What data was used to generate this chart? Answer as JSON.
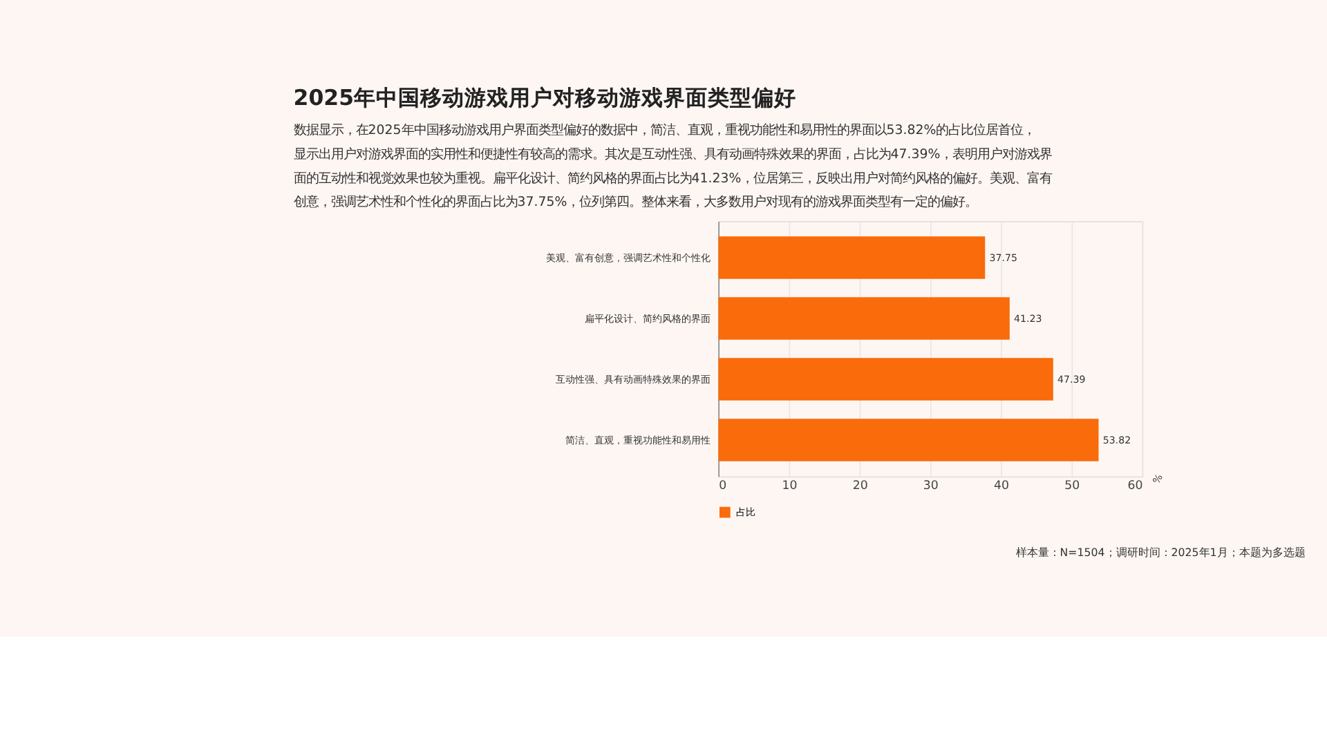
{
  "chart_data": {
    "type": "bar",
    "orientation": "horizontal",
    "title": "2025年中国移动游戏用户对移动游戏界面类型偏好",
    "subtitle": "数据显示，在2025年中国移动游戏用户界面类型偏好的数据中，简洁、直观，重视功能性和易用性的界面以53.82%的占比位居首位，显示出用户对游戏界面的实用性和便捷性有较高的需求。其次是互动性强、具有动画特殊效果的界面，占比为47.39%，表明用户对游戏界面的互动性和视觉效果也较为重视。扁平化设计、简约风格的界面占比为41.23%，位居第三，反映出用户对简约风格的偏好。美观、富有创意，强调艺术性和个性化的界面占比为37.75%，位列第四。整体来看，大多数用户对现有的游戏界面类型有一定的偏好。",
    "categories": [
      "美观、富有创意，强调艺术性和个性化",
      "扁平化设计、简约风格的界面",
      "互动性强、具有动画特殊效果的界面",
      "简洁、直观，重视功能性和易用性"
    ],
    "series": [
      {
        "name": "占比",
        "color": "#f96b0b",
        "values": [
          37.75,
          41.23,
          47.39,
          53.82
        ]
      }
    ],
    "xlabel": "%",
    "xlim": [
      0,
      60
    ],
    "xticks": [
      0,
      10,
      20,
      30,
      40,
      50,
      60
    ],
    "grid": "x",
    "legend": "bottom",
    "data_labels": true,
    "annotations": [
      "样本量：N=1504；调研时间：2025年1月；本题为多选题"
    ]
  }
}
